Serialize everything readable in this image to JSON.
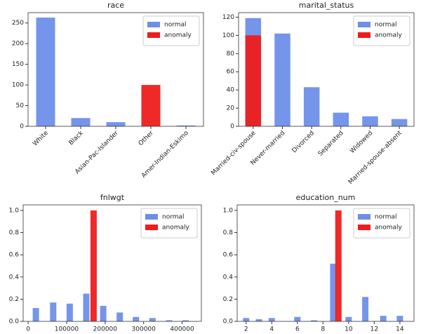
{
  "chart_data": [
    {
      "type": "bar",
      "title": "race",
      "categories": [
        "White",
        "Black",
        "Asian-Pac-Islander",
        "Other",
        "Amer-Indian-Eskimo"
      ],
      "series": [
        {
          "name": "normal",
          "color": "#6d8fe8",
          "values": [
            263,
            20,
            10,
            0,
            2
          ]
        },
        {
          "name": "anomaly",
          "color": "#ee1c1c",
          "values": [
            0,
            0,
            0,
            100,
            0
          ]
        }
      ],
      "ylim": [
        0,
        275
      ],
      "yticks": [
        0,
        50,
        100,
        150,
        200,
        250
      ],
      "grid": false,
      "legend": "upper right"
    },
    {
      "type": "bar",
      "title": "marital_status",
      "categories": [
        "Married-civ-spouse",
        "Never-married",
        "Divorced",
        "Separated",
        "Widowed",
        "Married-spouse-absent"
      ],
      "series": [
        {
          "name": "normal",
          "color": "#6d8fe8",
          "values": [
            119,
            102,
            43,
            15,
            11,
            8
          ]
        },
        {
          "name": "anomaly",
          "color": "#ee1c1c",
          "values": [
            100,
            0,
            0,
            0,
            0,
            0
          ]
        }
      ],
      "ylim": [
        0,
        125
      ],
      "yticks": [
        0,
        20,
        40,
        60,
        80,
        100,
        120
      ],
      "grid": false,
      "legend": "upper right"
    },
    {
      "type": "bar",
      "title": "fnlwgt",
      "series": [
        {
          "name": "normal",
          "color": "#6d8fe8",
          "x": [
            20000,
            65000,
            108000,
            151000,
            195000,
            238000,
            280000,
            323000,
            366000,
            409000
          ],
          "values": [
            0.12,
            0.17,
            0.16,
            0.25,
            0.14,
            0.08,
            0.04,
            0.03,
            0.01,
            0.01
          ]
        },
        {
          "name": "anomaly",
          "color": "#ee1c1c",
          "x": [
            170000
          ],
          "values": [
            1.0
          ]
        }
      ],
      "xlim": [
        -13000,
        450000
      ],
      "xticks": [
        0,
        100000,
        200000,
        300000,
        400000
      ],
      "ylim": [
        0,
        1.05
      ],
      "yticks": [
        {
          "value": 0,
          "label": "0.0"
        },
        0.2,
        0.4,
        0.6,
        0.8,
        {
          "value": 1,
          "label": "1.0"
        }
      ],
      "grid": false,
      "legend": "upper right"
    },
    {
      "type": "bar",
      "title": "education_num",
      "series": [
        {
          "name": "normal",
          "color": "#6d8fe8",
          "x": [
            2,
            3,
            4,
            6,
            7.3,
            8.8,
            10,
            11.3,
            12.7,
            14
          ],
          "values": [
            0.03,
            0.02,
            0.03,
            0.04,
            0.01,
            0.52,
            0.04,
            0.22,
            0.05,
            0.05
          ]
        },
        {
          "name": "anomaly",
          "color": "#ee1c1c",
          "x": [
            9.2
          ],
          "values": [
            1.0
          ]
        }
      ],
      "xlim": [
        1.3,
        15.1
      ],
      "xticks": [
        2,
        4,
        6,
        8,
        10,
        12,
        14
      ],
      "ylim": [
        0,
        1.05
      ],
      "yticks": [
        {
          "value": 0,
          "label": "0.0"
        },
        0.2,
        0.4,
        0.6,
        0.8,
        {
          "value": 1,
          "label": "1.0"
        }
      ],
      "grid": false,
      "legend": "upper right"
    }
  ]
}
